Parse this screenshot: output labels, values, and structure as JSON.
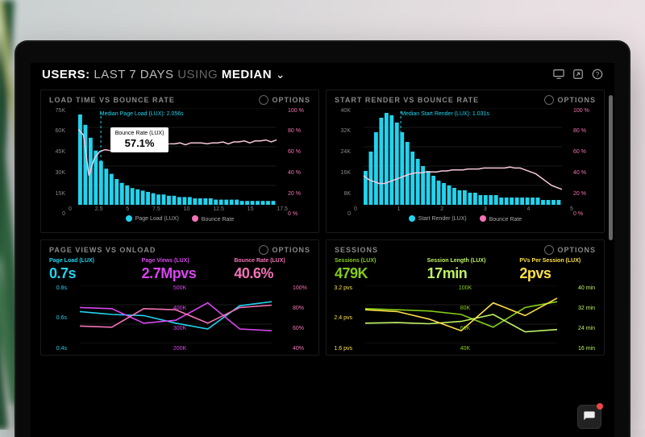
{
  "colors": {
    "bg": "#000000",
    "grid": "#1a1a1a",
    "cyan": "#22d3ee",
    "pink": "#f472b6",
    "magenta": "#d946ef",
    "green": "#84cc16",
    "lime": "#bef264",
    "yellow": "#fde047",
    "text_dim": "#888888",
    "white": "#ffffff"
  },
  "header": {
    "prefix": "USERS:",
    "range": "LAST 7 DAYS",
    "using": "USING",
    "metric": "MEDIAN"
  },
  "panels": {
    "load": {
      "title": "LOAD TIME VS BOUNCE RATE",
      "options": "OPTIONS",
      "median_label": "Median Page Load (LUX): 2.056s",
      "tooltip_label": "Bounce Rate (LUX)",
      "tooltip_value": "57.1%",
      "y_left": [
        "75K",
        "60K",
        "45K",
        "30K",
        "15K",
        "0"
      ],
      "y_right": [
        "100 %",
        "80 %",
        "60 %",
        "40 %",
        "20 %",
        "0 %"
      ],
      "y_right_color": "#f472b6",
      "x": [
        "0",
        "2.5",
        "5",
        "7.5",
        "10",
        "12.5",
        "15",
        "17.5"
      ],
      "xmax": 18,
      "bars": [
        70,
        62,
        52,
        42,
        34,
        28,
        24,
        20,
        17,
        15,
        13,
        12,
        11,
        10,
        9,
        8,
        8,
        7,
        7,
        6,
        6,
        6,
        5,
        5,
        5,
        5,
        4,
        4,
        4,
        4,
        4,
        3,
        3,
        3,
        3,
        3,
        3,
        3
      ],
      "bar_color": "#22d3ee",
      "bar_max": 75,
      "line": [
        78,
        72,
        30,
        48,
        55,
        57,
        56,
        59,
        58,
        60,
        59,
        60,
        60,
        62,
        61,
        63,
        62,
        63,
        63,
        64,
        62,
        64,
        64,
        64,
        63,
        64,
        64,
        65,
        63,
        65,
        65,
        66,
        64,
        66,
        66,
        67,
        65,
        67
      ],
      "line_color": "#f8c8dc",
      "line_max": 100,
      "vline_x": 2.056,
      "tooltip_x": 2.5,
      "legend": [
        {
          "label": "Page Load (LUX)",
          "cls": "lb-cyan"
        },
        {
          "label": "Bounce Rate",
          "cls": "lb-pink"
        }
      ]
    },
    "render": {
      "title": "START RENDER VS BOUNCE RATE",
      "options": "OPTIONS",
      "median_label": "Median Start Render (LUX): 1.031s",
      "y_left": [
        "40K",
        "32K",
        "24K",
        "16K",
        "8K",
        "0"
      ],
      "y_right": [
        "100 %",
        "80 %",
        "60 %",
        "40 %",
        "20 %",
        "0 %"
      ],
      "y_right_color": "#f472b6",
      "x": [
        "0",
        "1",
        "2",
        "3",
        "4",
        "5"
      ],
      "xmax": 5.5,
      "bars": [
        14,
        22,
        30,
        36,
        38,
        37,
        34,
        30,
        26,
        22,
        19,
        16,
        14,
        12,
        10,
        9,
        8,
        7,
        6,
        6,
        5,
        5,
        4,
        4,
        4,
        4,
        3,
        3,
        3,
        3,
        3,
        3,
        3,
        3,
        2,
        2,
        2,
        2
      ],
      "bar_color": "#22d3ee",
      "bar_max": 40,
      "line": [
        30,
        26,
        24,
        22,
        22,
        24,
        26,
        28,
        30,
        32,
        33,
        33,
        34,
        34,
        34,
        35,
        35,
        36,
        36,
        36,
        37,
        37,
        37,
        38,
        38,
        38,
        38,
        38,
        39,
        38,
        38,
        36,
        34,
        32,
        28,
        24,
        20,
        18,
        16
      ],
      "line_color": "#f8c8dc",
      "line_max": 100,
      "vline_x": 1.031,
      "legend": [
        {
          "label": "Start Render (LUX)",
          "cls": "lb-cyan"
        },
        {
          "label": "Bounce Rate",
          "cls": "lb-pink"
        }
      ]
    },
    "pageviews": {
      "title": "PAGE VIEWS VS ONLOAD",
      "options": "OPTIONS",
      "metrics": [
        {
          "label": "Page Load (LUX)",
          "value": "0.7s",
          "label_color": "#22d3ee",
          "value_color": "#22d3ee"
        },
        {
          "label": "Page Views (LUX)",
          "value": "2.7Mpvs",
          "label_color": "#d946ef",
          "value_color": "#d946ef"
        },
        {
          "label": "Bounce Rate (LUX)",
          "value": "40.6%",
          "label_color": "#f472b6",
          "value_color": "#f472b6"
        }
      ],
      "y_left": {
        "values": [
          "0.8s",
          "0.6s",
          "0.4s"
        ],
        "color": "#22d3ee"
      },
      "y_mid": {
        "values": [
          "500K",
          "400K",
          "300K",
          "200K"
        ],
        "color": "#d946ef"
      },
      "y_right": {
        "values": [
          "100%",
          "80%",
          "60%",
          "40%"
        ],
        "color": "#f472b6"
      },
      "series": [
        {
          "color": "#22d3ee",
          "pts": [
            0.55,
            0.5,
            0.48,
            0.35,
            0.25,
            0.65,
            0.72
          ]
        },
        {
          "color": "#d946ef",
          "pts": [
            0.62,
            0.6,
            0.35,
            0.4,
            0.7,
            0.25,
            0.22
          ]
        },
        {
          "color": "#f472b6",
          "pts": [
            0.3,
            0.28,
            0.6,
            0.58,
            0.35,
            0.62,
            0.66
          ]
        }
      ]
    },
    "sessions": {
      "title": "SESSIONS",
      "options": "OPTIONS",
      "metrics": [
        {
          "label": "Sessions (LUX)",
          "value": "479K",
          "label_color": "#84cc16",
          "value_color": "#84cc16"
        },
        {
          "label": "Session Length (LUX)",
          "value": "17min",
          "label_color": "#bef264",
          "value_color": "#bef264"
        },
        {
          "label": "PVs Per Session (LUX)",
          "value": "2pvs",
          "label_color": "#fde047",
          "value_color": "#fde047"
        }
      ],
      "y_left": {
        "values": [
          "3.2 pvs",
          "2.4 pvs",
          "1.6 pvs"
        ],
        "color": "#fde047"
      },
      "y_mid": {
        "values": [
          "100K",
          "80K",
          "60K",
          "40K"
        ],
        "color": "#84cc16"
      },
      "y_right": {
        "values": [
          "40 min",
          "32 min",
          "24 min",
          "16 min"
        ],
        "color": "#bef264"
      },
      "series": [
        {
          "color": "#84cc16",
          "pts": [
            0.6,
            0.58,
            0.56,
            0.5,
            0.28,
            0.62,
            0.72
          ]
        },
        {
          "color": "#bef264",
          "pts": [
            0.35,
            0.36,
            0.34,
            0.38,
            0.5,
            0.2,
            0.24
          ]
        },
        {
          "color": "#fde047",
          "pts": [
            0.58,
            0.55,
            0.42,
            0.22,
            0.7,
            0.48,
            0.78
          ]
        }
      ]
    }
  }
}
